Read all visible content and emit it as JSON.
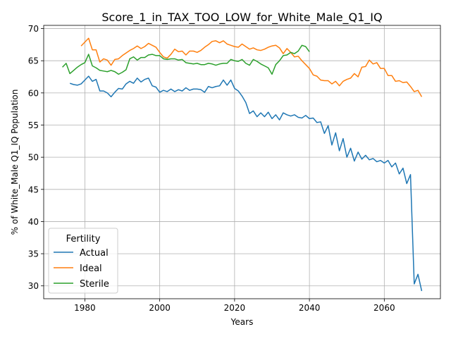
{
  "chart_data": {
    "type": "line",
    "title": "Score_1_in_TAX_TOO_LOW_for_White_Male_Q1_IQ",
    "xlabel": "Years",
    "ylabel": "% of White_Male Q1_IQ Population",
    "xlim": [
      1969,
      2075
    ],
    "ylim": [
      28,
      70.5
    ],
    "xticks": [
      1980,
      2000,
      2020,
      2040,
      2060
    ],
    "yticks": [
      30,
      35,
      40,
      45,
      50,
      55,
      60,
      65,
      70
    ],
    "grid": true,
    "legend": {
      "title": "Fertility",
      "placement": "lower-left"
    },
    "series": [
      {
        "name": "Actual",
        "color": "#1f77b4",
        "x": [
          1976,
          1977,
          1978,
          1979,
          1980,
          1981,
          1982,
          1983,
          1984,
          1985,
          1986,
          1987,
          1988,
          1989,
          1990,
          1991,
          1992,
          1993,
          1994,
          1995,
          1996,
          1997,
          1998,
          1999,
          2000,
          2001,
          2002,
          2003,
          2004,
          2005,
          2006,
          2007,
          2008,
          2009,
          2010,
          2011,
          2012,
          2013,
          2014,
          2015,
          2016,
          2017,
          2018,
          2019,
          2020,
          2021,
          2022,
          2023,
          2024,
          2025,
          2026,
          2027,
          2028,
          2029,
          2030,
          2031,
          2032,
          2033,
          2034,
          2035,
          2036,
          2037,
          2038,
          2039,
          2040,
          2041,
          2042,
          2043,
          2044,
          2045,
          2046,
          2047,
          2048,
          2049,
          2050,
          2051,
          2052,
          2053,
          2054,
          2055,
          2056,
          2057,
          2058,
          2059,
          2060,
          2061,
          2062,
          2063,
          2064,
          2065,
          2066,
          2067,
          2068,
          2069,
          2070
        ],
        "values": [
          61.5,
          61.3,
          61.2,
          61.4,
          62.0,
          62.6,
          61.8,
          62.1,
          60.3,
          60.3,
          60.0,
          59.4,
          60.1,
          60.7,
          60.6,
          61.4,
          61.8,
          61.5,
          62.3,
          61.7,
          62.1,
          62.3,
          61.1,
          60.9,
          60.1,
          60.4,
          60.2,
          60.6,
          60.2,
          60.5,
          60.3,
          60.8,
          60.4,
          60.6,
          60.6,
          60.5,
          60.1,
          61.0,
          60.8,
          61.0,
          61.1,
          62.0,
          61.2,
          62.0,
          60.7,
          60.3,
          59.5,
          58.5,
          56.8,
          57.2,
          56.3,
          56.9,
          56.3,
          57.0,
          56.0,
          56.6,
          55.8,
          56.9,
          56.6,
          56.4,
          56.6,
          56.2,
          56.1,
          56.5,
          56.0,
          56.1,
          55.4,
          55.5,
          53.7,
          54.9,
          51.9,
          53.8,
          51.0,
          52.9,
          50.0,
          51.4,
          49.4,
          50.8,
          49.7,
          50.3,
          49.6,
          49.8,
          49.3,
          49.5,
          49.1,
          49.5,
          48.5,
          49.1,
          47.4,
          48.3,
          45.9,
          47.3,
          30.3,
          31.8,
          29.2
        ]
      },
      {
        "name": "Ideal",
        "color": "#ff7f0e",
        "x": [
          1979,
          1980,
          1981,
          1982,
          1983,
          1984,
          1985,
          1986,
          1987,
          1988,
          1989,
          1990,
          1991,
          1992,
          1993,
          1994,
          1995,
          1996,
          1997,
          1998,
          1999,
          2000,
          2001,
          2002,
          2003,
          2004,
          2005,
          2006,
          2007,
          2008,
          2009,
          2010,
          2011,
          2012,
          2013,
          2014,
          2015,
          2016,
          2017,
          2018,
          2019,
          2020,
          2021,
          2022,
          2023,
          2024,
          2025,
          2026,
          2027,
          2028,
          2029,
          2030,
          2031,
          2032,
          2033,
          2034,
          2035,
          2036,
          2037,
          2038,
          2039,
          2040,
          2041,
          2042,
          2043,
          2044,
          2045,
          2046,
          2047,
          2048,
          2049,
          2050,
          2051,
          2052,
          2053,
          2054,
          2055,
          2056,
          2057,
          2058,
          2059,
          2060,
          2061,
          2062,
          2063,
          2064,
          2065,
          2066,
          2067,
          2068,
          2069,
          2070
        ],
        "values": [
          67.3,
          67.9,
          68.5,
          66.7,
          66.7,
          64.8,
          65.3,
          65.1,
          64.3,
          65.2,
          65.3,
          65.8,
          66.2,
          66.6,
          66.9,
          67.3,
          66.9,
          67.2,
          67.7,
          67.4,
          67.1,
          66.3,
          65.6,
          65.4,
          66.0,
          66.8,
          66.4,
          66.5,
          65.9,
          66.5,
          66.5,
          66.3,
          66.6,
          67.1,
          67.5,
          68.0,
          68.1,
          67.8,
          68.1,
          67.6,
          67.4,
          67.2,
          67.1,
          67.6,
          67.2,
          66.8,
          67.0,
          66.7,
          66.6,
          66.8,
          67.1,
          67.3,
          67.4,
          67.0,
          66.1,
          66.9,
          66.3,
          65.6,
          65.7,
          65.0,
          64.4,
          63.8,
          62.8,
          62.6,
          62.0,
          61.9,
          61.9,
          61.4,
          61.8,
          61.1,
          61.8,
          62.1,
          62.3,
          63.0,
          62.5,
          64.0,
          64.1,
          65.1,
          64.5,
          64.7,
          63.8,
          63.8,
          62.7,
          62.7,
          61.8,
          61.9,
          61.6,
          61.7,
          61.0,
          60.2,
          60.4,
          59.4
        ]
      },
      {
        "name": "Sterile",
        "color": "#2ca02c",
        "x": [
          1974,
          1975,
          1976,
          1977,
          1978,
          1979,
          1980,
          1981,
          1982,
          1983,
          1984,
          1985,
          1986,
          1987,
          1988,
          1989,
          1990,
          1991,
          1992,
          1993,
          1994,
          1995,
          1996,
          1997,
          1998,
          1999,
          2000,
          2001,
          2002,
          2003,
          2004,
          2005,
          2006,
          2007,
          2008,
          2009,
          2010,
          2011,
          2012,
          2013,
          2014,
          2015,
          2016,
          2017,
          2018,
          2019,
          2020,
          2021,
          2022,
          2023,
          2024,
          2025,
          2026,
          2027,
          2028,
          2029,
          2030,
          2031,
          2032,
          2033,
          2034,
          2035,
          2036,
          2037,
          2038,
          2039,
          2040
        ],
        "values": [
          64.0,
          64.6,
          63.0,
          63.5,
          64.0,
          64.4,
          64.7,
          66.0,
          64.2,
          63.9,
          63.5,
          63.4,
          63.3,
          63.5,
          63.3,
          62.9,
          63.2,
          63.6,
          65.3,
          65.6,
          65.1,
          65.5,
          65.5,
          65.9,
          66.0,
          65.8,
          65.8,
          65.3,
          65.2,
          65.3,
          65.3,
          65.1,
          65.2,
          64.7,
          64.6,
          64.5,
          64.6,
          64.4,
          64.4,
          64.6,
          64.5,
          64.3,
          64.5,
          64.6,
          64.6,
          65.2,
          65.0,
          64.9,
          65.2,
          64.6,
          64.3,
          65.2,
          64.9,
          64.5,
          64.2,
          63.9,
          62.9,
          64.4,
          65.0,
          65.8,
          65.9,
          66.3,
          66.1,
          66.5,
          67.4,
          67.2,
          66.4
        ]
      }
    ]
  }
}
